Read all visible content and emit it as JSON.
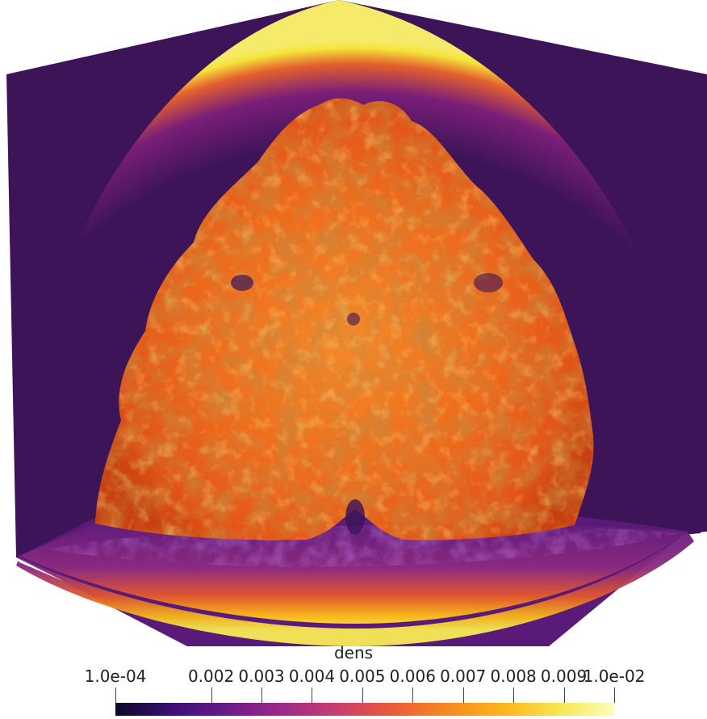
{
  "scene": {
    "description_icon": "volume-render-icon",
    "colormap": "plasma-like",
    "colors": {
      "background_purple": "#3c1457",
      "floor_purple": "#5a1a78",
      "shell_yellow": "#f5e43a",
      "shell_orange": "#f08a2a",
      "plume_orange": "#ee6a1c",
      "plume_dark": "#8a3a1a"
    }
  },
  "colorbar": {
    "title": "dens",
    "ticks": [
      {
        "label": "1.0e-04",
        "value": 0.0001
      },
      {
        "label": "0.002",
        "value": 0.002
      },
      {
        "label": "0.003",
        "value": 0.003
      },
      {
        "label": "0.004",
        "value": 0.004
      },
      {
        "label": "0.005",
        "value": 0.005
      },
      {
        "label": "0.006",
        "value": 0.006
      },
      {
        "label": "0.007",
        "value": 0.007
      },
      {
        "label": "0.008",
        "value": 0.008
      },
      {
        "label": "0.009",
        "value": 0.009
      },
      {
        "label": "1.0e-02",
        "value": 0.01
      }
    ],
    "range": [
      0.0001,
      0.01
    ],
    "gradient_stops": [
      "#0d0829",
      "#3b0f70",
      "#6a1c86",
      "#9c2a8a",
      "#c93d6d",
      "#ec5b3a",
      "#f88a22",
      "#fbb61a",
      "#f7e64f",
      "#fcfdbf"
    ]
  }
}
